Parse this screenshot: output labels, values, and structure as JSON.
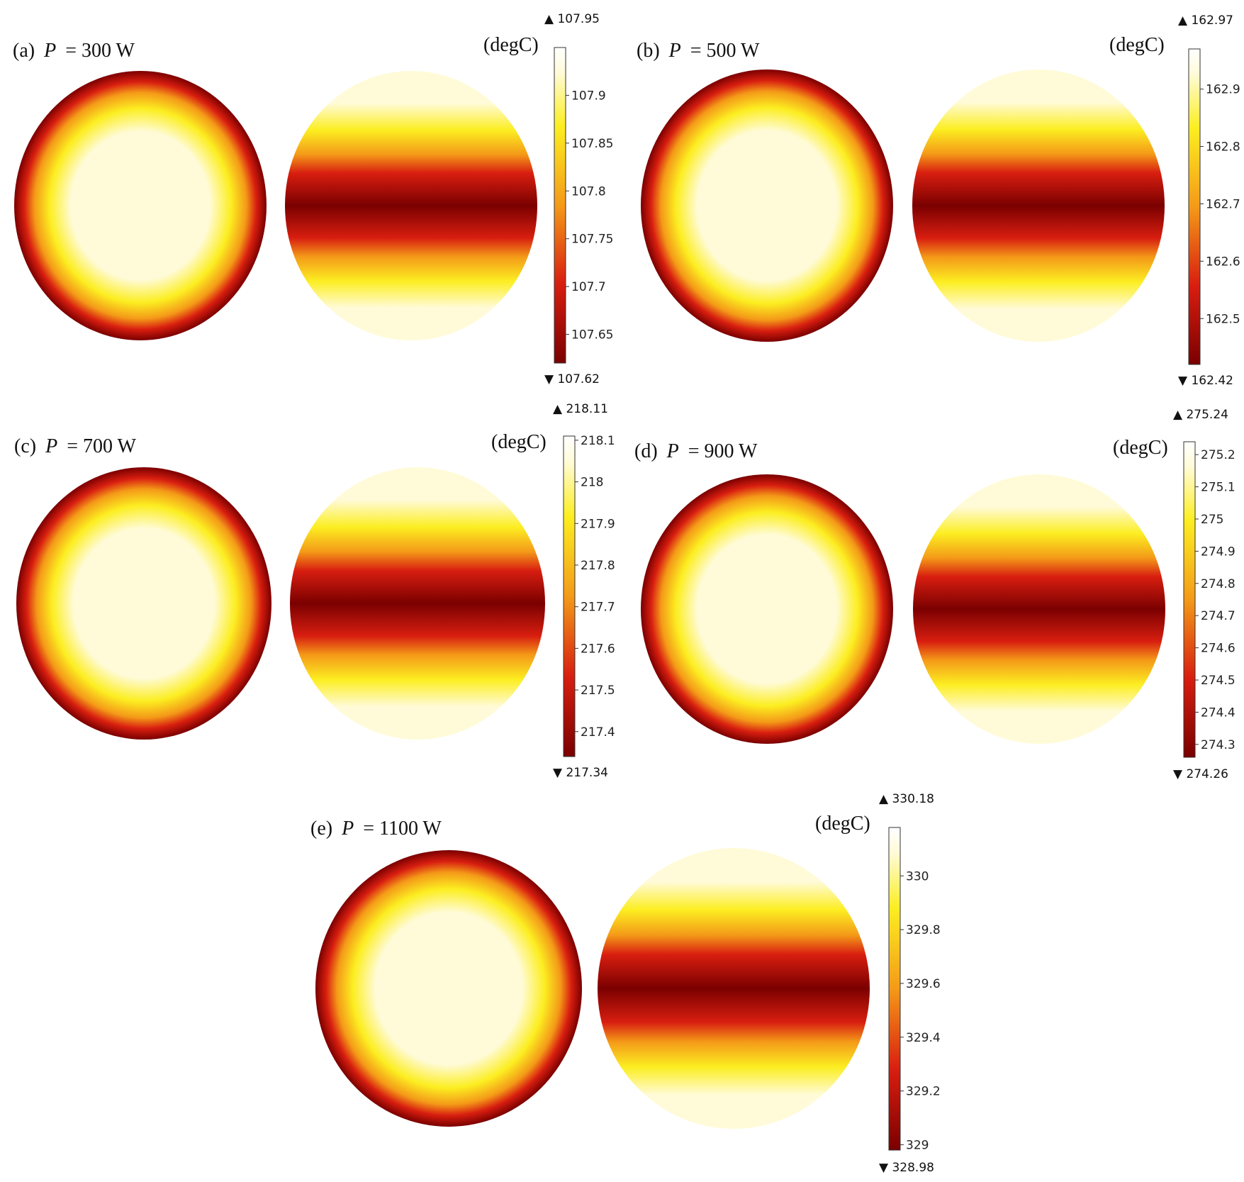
{
  "colors": {
    "dark": "#7a0000",
    "red": "#d81e10",
    "orange": "#f49a18",
    "yellow": "#fcee21",
    "light": "#fffbd8",
    "white": "#ffffff"
  },
  "chart_data": [
    {
      "type": "heatmap",
      "label_prefix": "(a)",
      "param_symbol": "P",
      "param_value": "= 300 W",
      "unit": "(degC)",
      "min": 107.62,
      "max": 107.95,
      "min_label": "▼ 107.62",
      "max_label": "▲ 107.95",
      "ticks": [
        107.9,
        107.85,
        107.8,
        107.75,
        107.7,
        107.65
      ],
      "tick_labels": [
        "107.9",
        "107.85",
        "107.8",
        "107.75",
        "107.7",
        "107.65"
      ]
    },
    {
      "type": "heatmap",
      "label_prefix": "(b)",
      "param_symbol": "P",
      "param_value": "= 500 W",
      "unit": "(degC)",
      "min": 162.42,
      "max": 162.97,
      "min_label": "▼ 162.42",
      "max_label": "▲ 162.97",
      "ticks": [
        162.9,
        162.8,
        162.7,
        162.6,
        162.5
      ],
      "tick_labels": [
        "162.9",
        "162.8",
        "162.7",
        "162.6",
        "162.5"
      ]
    },
    {
      "type": "heatmap",
      "label_prefix": "(c)",
      "param_symbol": "P",
      "param_value": "= 700 W",
      "unit": "(degC)",
      "min": 217.34,
      "max": 218.11,
      "min_label": "▼ 217.34",
      "max_label": "▲ 218.11",
      "ticks": [
        218.1,
        218,
        217.9,
        217.8,
        217.7,
        217.6,
        217.5,
        217.4
      ],
      "tick_labels": [
        "218.1",
        "218",
        "217.9",
        "217.8",
        "217.7",
        "217.6",
        "217.5",
        "217.4"
      ]
    },
    {
      "type": "heatmap",
      "label_prefix": "(d)",
      "param_symbol": "P",
      "param_value": "= 900 W",
      "unit": "(degC)",
      "min": 274.26,
      "max": 275.24,
      "min_label": "▼ 274.26",
      "max_label": "▲ 275.24",
      "ticks": [
        275.2,
        275.1,
        275,
        274.9,
        274.8,
        274.7,
        274.6,
        274.5,
        274.4,
        274.3
      ],
      "tick_labels": [
        "275.2",
        "275.1",
        "275",
        "274.9",
        "274.8",
        "274.7",
        "274.6",
        "274.5",
        "274.4",
        "274.3"
      ]
    },
    {
      "type": "heatmap",
      "label_prefix": "(e)",
      "param_symbol": "P",
      "param_value": "= 1100 W",
      "unit": "(degC)",
      "min": 328.98,
      "max": 330.18,
      "min_label": "▼ 328.98",
      "max_label": "▲ 330.18",
      "ticks": [
        330,
        329.8,
        329.6,
        329.4,
        329.2,
        329
      ],
      "tick_labels": [
        "330",
        "329.8",
        "329.6",
        "329.4",
        "329.2",
        "329"
      ]
    }
  ]
}
